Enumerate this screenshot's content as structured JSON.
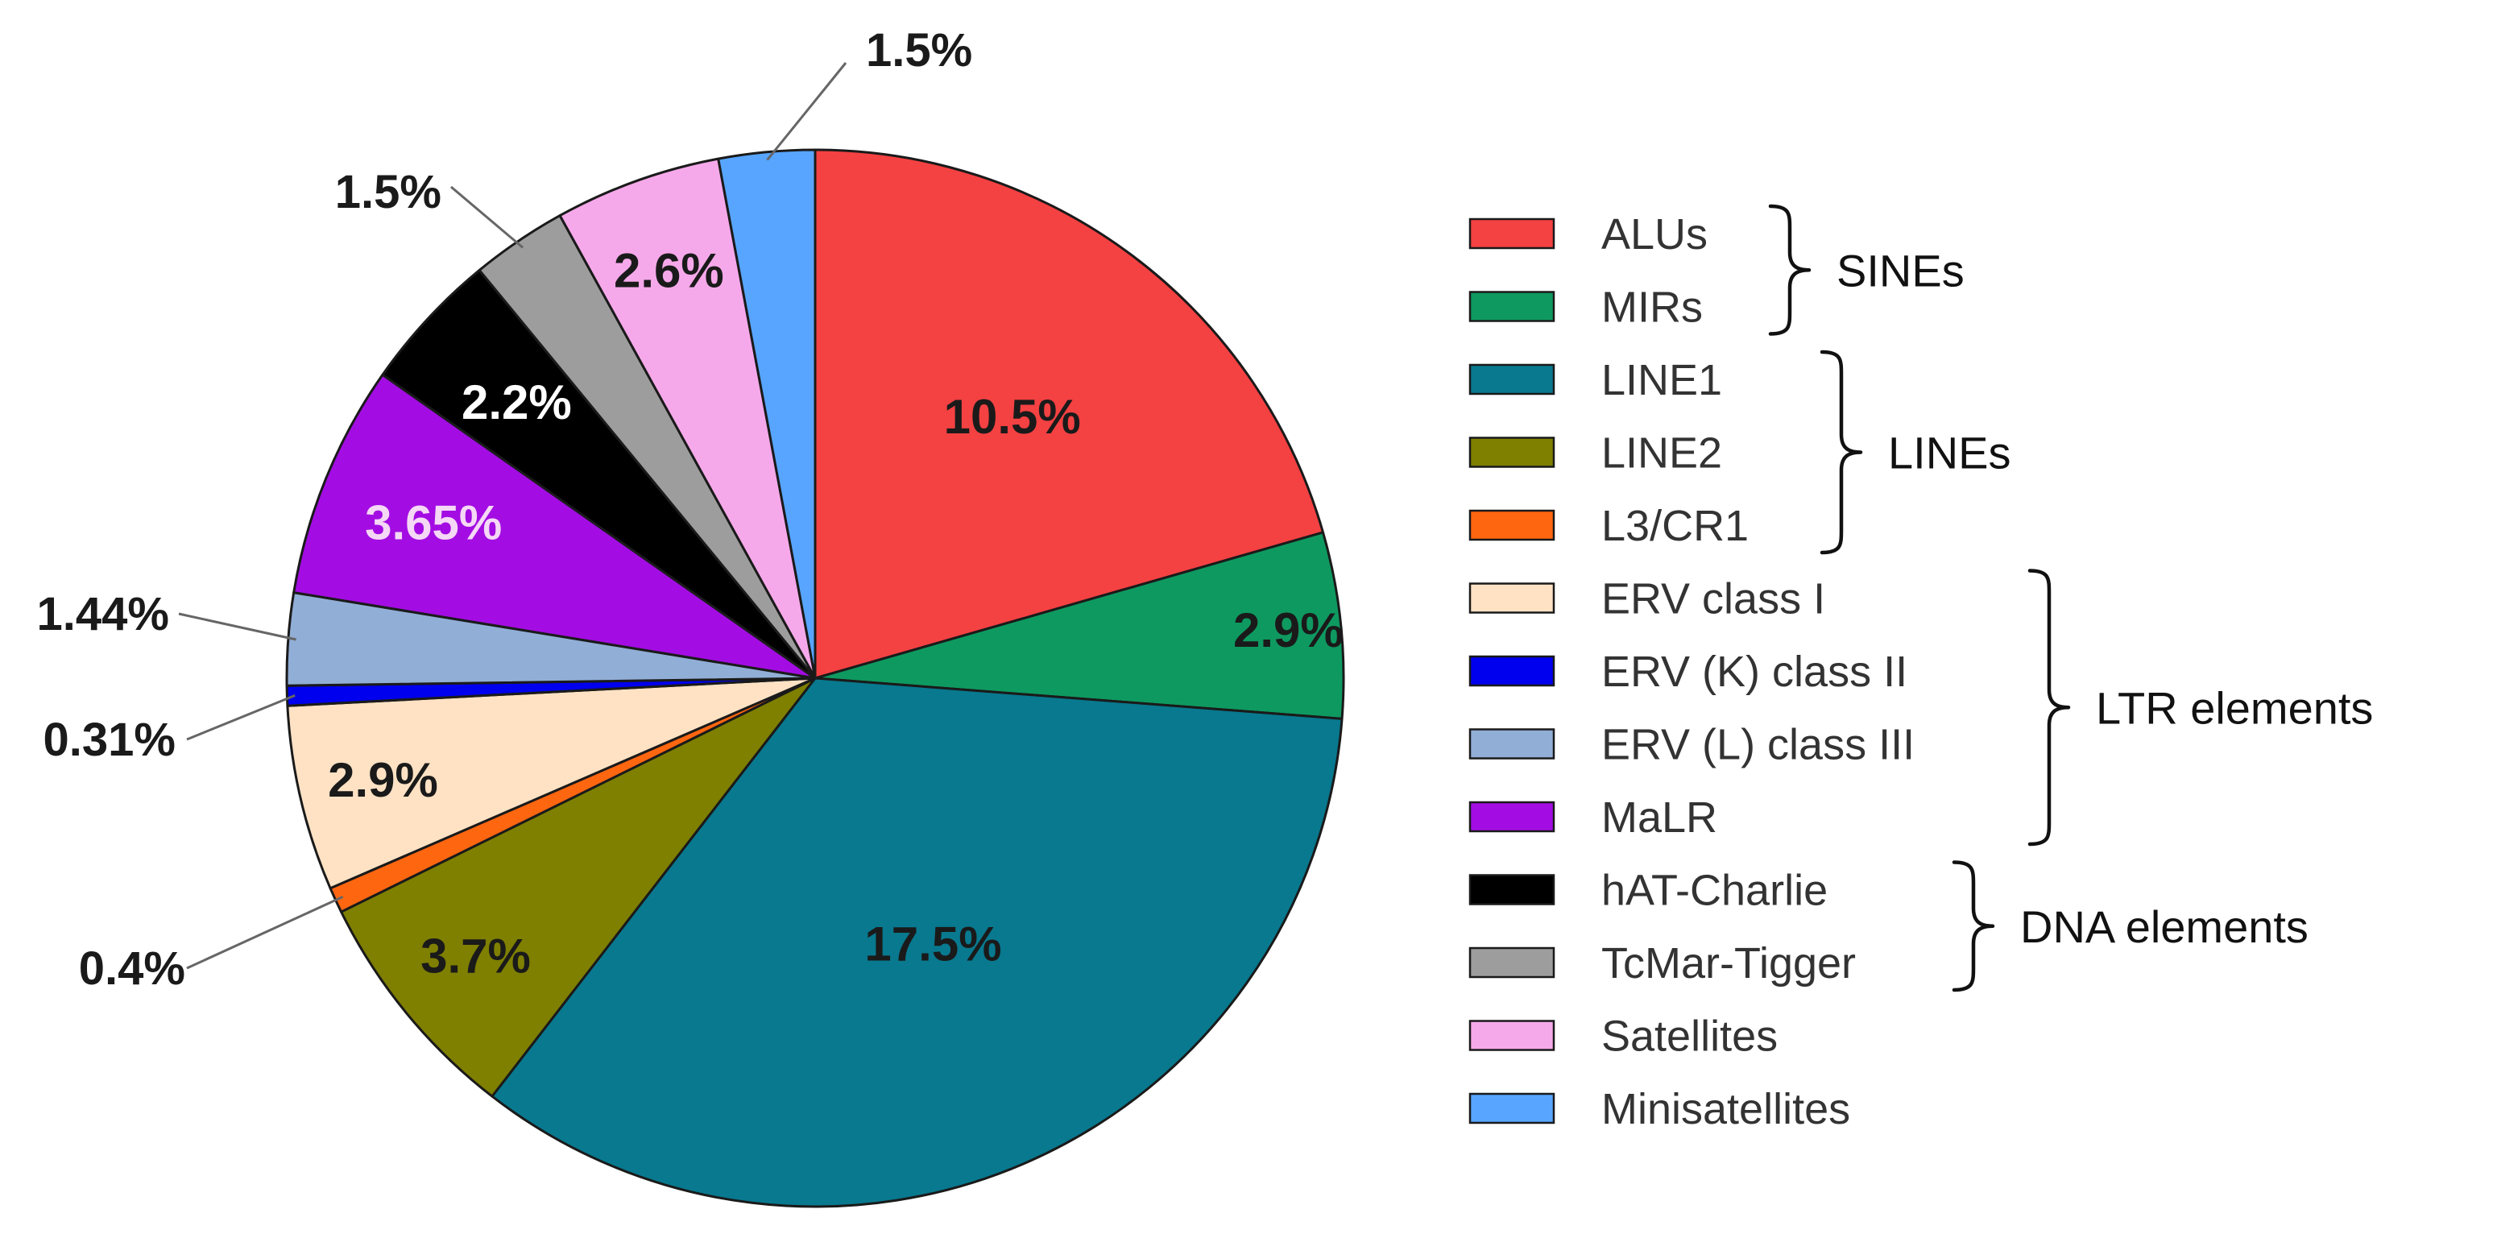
{
  "chart_data": {
    "type": "pie",
    "slices": [
      {
        "name": "ALUs",
        "value": 10.5,
        "label": "10.5%",
        "color": "#f44142",
        "label_color": "#1a1a1a",
        "label_mode": "inside"
      },
      {
        "name": "MIRs",
        "value": 2.9,
        "label": "2.9%",
        "color": "#0e9960",
        "label_color": "#1a1a1a",
        "label_mode": "inside"
      },
      {
        "name": "LINE1",
        "value": 17.5,
        "label": "17.5%",
        "color": "#08798f",
        "label_color": "#1a1a1a",
        "label_mode": "inside"
      },
      {
        "name": "LINE2",
        "value": 3.7,
        "label": "3.7%",
        "color": "#7f7f00",
        "label_color": "#1a1a1a",
        "label_mode": "inside"
      },
      {
        "name": "L3/CR1",
        "value": 0.4,
        "label": "0.4%",
        "color": "#ff6610",
        "label_color": "#1a1a1a",
        "label_mode": "outside"
      },
      {
        "name": "ERV class I",
        "value": 2.9,
        "label": "2.9%",
        "color": "#ffe2c4",
        "label_color": "#1a1a1a",
        "label_mode": "inside"
      },
      {
        "name": "ERV (K) class II",
        "value": 0.31,
        "label": "0.31%",
        "color": "#0000ee",
        "label_color": "#1a1a1a",
        "label_mode": "outside"
      },
      {
        "name": "ERV (L) class III",
        "value": 1.44,
        "label": "1.44%",
        "color": "#91aed6",
        "label_color": "#1a1a1a",
        "label_mode": "outside"
      },
      {
        "name": "MaLR",
        "value": 3.65,
        "label": "3.65%",
        "color": "#a30de3",
        "label_color": "#f5d8f5",
        "label_mode": "inside"
      },
      {
        "name": "hAT-Charlie",
        "value": 2.2,
        "label": "2.2%",
        "color": "#000000",
        "label_color": "#ffffff",
        "label_mode": "inside"
      },
      {
        "name": "TcMar-Tigger",
        "value": 1.5,
        "label": "1.5%",
        "color": "#9d9d9d",
        "label_color": "#1a1a1a",
        "label_mode": "outside"
      },
      {
        "name": "Satellites",
        "value": 2.6,
        "label": "2.6%",
        "color": "#f6a9ea",
        "label_color": "#1a1a1a",
        "label_mode": "inside"
      },
      {
        "name": "Minisatellites",
        "value": 1.5,
        "label": "1.5%",
        "color": "#58a5ff",
        "label_color": "#1a1a1a",
        "label_mode": "outside"
      }
    ],
    "start_angle_deg": 0,
    "direction": "clockwise",
    "legend_position": "right",
    "groups": [
      {
        "label": "SINEs",
        "members": [
          "ALUs",
          "MIRs"
        ]
      },
      {
        "label": "LINEs",
        "members": [
          "LINE1",
          "LINE2",
          "L3/CR1"
        ]
      },
      {
        "label": "LTR elements",
        "members": [
          "ERV class I",
          "ERV (K) class II",
          "ERV (L) class III",
          "MaLR"
        ]
      },
      {
        "label": "DNA elements",
        "members": [
          "hAT-Charlie",
          "TcMar-Tigger"
        ]
      }
    ]
  }
}
